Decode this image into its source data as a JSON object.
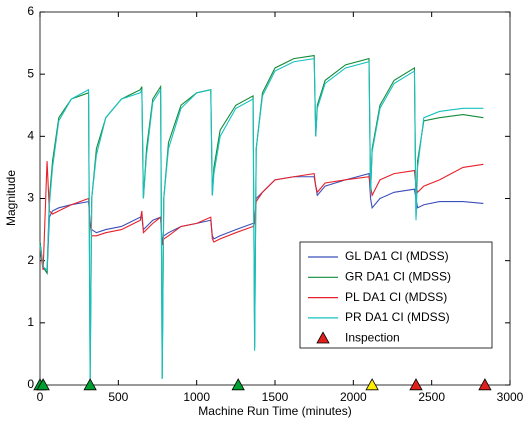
{
  "chart_data": {
    "type": "line",
    "xlabel": "Machine Run Time (minutes)",
    "ylabel": "Magnitude",
    "xlim": [
      0,
      3000
    ],
    "xticks": [
      0,
      500,
      1000,
      1500,
      2000,
      2500,
      3000
    ],
    "ylim": [
      0,
      6
    ],
    "yticks": [
      0,
      1,
      2,
      3,
      4,
      5,
      6
    ],
    "x": [
      0,
      20,
      45,
      60,
      80,
      120,
      200,
      310,
      320,
      330,
      360,
      420,
      520,
      640,
      650,
      660,
      680,
      720,
      770,
      780,
      790,
      820,
      900,
      1000,
      1090,
      1100,
      1110,
      1150,
      1250,
      1360,
      1370,
      1380,
      1420,
      1500,
      1620,
      1750,
      1760,
      1770,
      1820,
      1950,
      2100,
      2110,
      2120,
      2170,
      2260,
      2390,
      2400,
      2410,
      2450,
      2550,
      2700,
      2830
    ],
    "series": [
      {
        "name": "GL DA1 CI (MDSS)",
        "color": "#3b4fb8",
        "values": [
          2.3,
          1.9,
          1.8,
          2.7,
          2.8,
          2.85,
          2.9,
          2.95,
          2.6,
          2.5,
          2.45,
          2.5,
          2.55,
          2.7,
          2.7,
          2.5,
          2.55,
          2.65,
          2.7,
          2.3,
          2.4,
          2.45,
          2.55,
          2.6,
          2.65,
          2.4,
          2.35,
          2.4,
          2.5,
          2.6,
          2.6,
          3.0,
          3.1,
          3.3,
          3.35,
          3.35,
          3.2,
          3.05,
          3.2,
          3.3,
          3.4,
          3.0,
          2.85,
          3.0,
          3.1,
          3.15,
          3.0,
          2.85,
          2.9,
          2.95,
          2.95,
          2.92
        ]
      },
      {
        "name": "GR DA1 CI (MDSS)",
        "color": "#138b3a",
        "values": [
          2.3,
          1.9,
          1.8,
          3.0,
          3.6,
          4.3,
          4.6,
          4.7,
          0.1,
          3.0,
          3.8,
          4.3,
          4.6,
          4.75,
          4.8,
          3.0,
          3.8,
          4.6,
          4.8,
          0.1,
          3.0,
          3.9,
          4.5,
          4.7,
          4.75,
          3.05,
          3.5,
          4.1,
          4.5,
          4.65,
          0.6,
          3.8,
          4.7,
          5.1,
          5.25,
          5.3,
          4.0,
          4.5,
          4.9,
          5.15,
          5.25,
          3.1,
          3.8,
          4.5,
          4.9,
          5.1,
          2.7,
          3.6,
          4.25,
          4.3,
          4.35,
          4.3
        ]
      },
      {
        "name": "PL DA1 CI (MDSS)",
        "color": "#e8202a",
        "values": [
          2.2,
          1.85,
          3.6,
          2.8,
          2.75,
          2.8,
          2.9,
          3.0,
          2.6,
          2.4,
          2.4,
          2.45,
          2.5,
          2.65,
          2.8,
          2.45,
          2.5,
          2.6,
          2.7,
          2.25,
          2.35,
          2.4,
          2.55,
          2.6,
          2.7,
          2.35,
          2.3,
          2.35,
          2.45,
          2.55,
          2.6,
          2.95,
          3.1,
          3.3,
          3.35,
          3.4,
          3.2,
          3.1,
          3.25,
          3.3,
          3.35,
          3.2,
          3.05,
          3.3,
          3.4,
          3.45,
          3.2,
          3.1,
          3.2,
          3.3,
          3.5,
          3.55
        ]
      },
      {
        "name": "PR DA1 CI (MDSS)",
        "color": "#17c0c0",
        "values": [
          2.25,
          1.9,
          1.85,
          2.9,
          3.5,
          4.25,
          4.6,
          4.75,
          0.05,
          3.0,
          3.7,
          4.3,
          4.6,
          4.7,
          4.75,
          3.0,
          3.7,
          4.55,
          4.75,
          0.1,
          3.0,
          3.8,
          4.45,
          4.7,
          4.75,
          3.05,
          3.4,
          4.0,
          4.45,
          4.6,
          0.55,
          3.8,
          4.65,
          5.05,
          5.2,
          5.25,
          4.0,
          4.45,
          4.85,
          5.1,
          5.2,
          3.1,
          3.75,
          4.45,
          4.85,
          5.05,
          2.65,
          3.5,
          4.3,
          4.4,
          4.45,
          4.45
        ]
      }
    ],
    "markers": {
      "name": "Inspection",
      "legend_color": "#e0201b",
      "x": [
        0,
        20,
        320,
        1265,
        2120,
        2400,
        2840
      ],
      "values": [
        0,
        0,
        0,
        0,
        0,
        0,
        0
      ],
      "colors": [
        "#00a030",
        "#00a030",
        "#00a030",
        "#00a030",
        "#ffee00",
        "#e0201b",
        "#e0201b"
      ]
    }
  }
}
